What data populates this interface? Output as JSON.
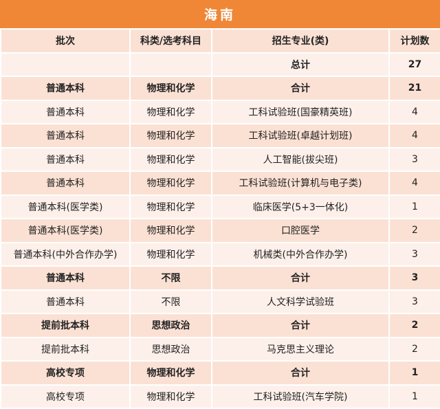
{
  "title": "海南",
  "table": {
    "header": [
      "批次",
      "科类/选考科目",
      "招生专业(类)",
      "计划数"
    ],
    "rows": [
      {
        "cells": [
          null,
          null,
          "总计",
          27
        ],
        "emphasis": true
      },
      {
        "cells": [
          "普通本科",
          "物理和化学",
          "合计",
          21
        ],
        "emphasis": true
      },
      {
        "cells": [
          "普通本科",
          "物理和化学",
          "工科试验班(国豪精英班)",
          4
        ],
        "emphasis": false
      },
      {
        "cells": [
          "普通本科",
          "物理和化学",
          "工科试验班(卓越计划班)",
          4
        ],
        "emphasis": false
      },
      {
        "cells": [
          "普通本科",
          "物理和化学",
          "人工智能(拔尖班)",
          3
        ],
        "emphasis": false
      },
      {
        "cells": [
          "普通本科",
          "物理和化学",
          "工科试验班(计算机与电子类)",
          4
        ],
        "emphasis": false
      },
      {
        "cells": [
          "普通本科(医学类)",
          "物理和化学",
          "临床医学(5+3一体化)",
          1
        ],
        "emphasis": false
      },
      {
        "cells": [
          "普通本科(医学类)",
          "物理和化学",
          "口腔医学",
          2
        ],
        "emphasis": false
      },
      {
        "cells": [
          "普通本科(中外合作办学)",
          "物理和化学",
          "机械类(中外合作办学)",
          3
        ],
        "emphasis": false
      },
      {
        "cells": [
          "普通本科",
          "不限",
          "合计",
          3
        ],
        "emphasis": true
      },
      {
        "cells": [
          "普通本科",
          "不限",
          "人文科学试验班",
          3
        ],
        "emphasis": false
      },
      {
        "cells": [
          "提前批本科",
          "思想政治",
          "合计",
          2
        ],
        "emphasis": true
      },
      {
        "cells": [
          "提前批本科",
          "思想政治",
          "马克思主义理论",
          2
        ],
        "emphasis": false
      },
      {
        "cells": [
          "高校专项",
          "物理和化学",
          "合计",
          1
        ],
        "emphasis": true
      },
      {
        "cells": [
          "高校专项",
          "物理和化学",
          "工科试验班(汽车学院)",
          1
        ],
        "emphasis": false
      }
    ]
  }
}
